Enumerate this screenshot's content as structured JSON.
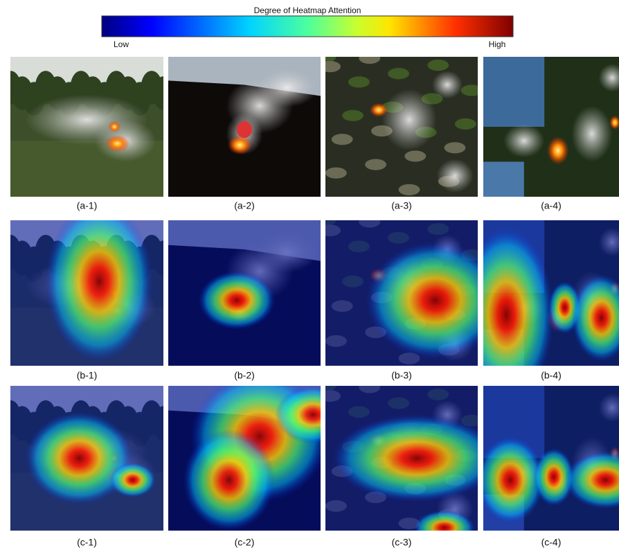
{
  "colorbar": {
    "title": "Degree of Heatmap Attention",
    "low_label": "Low",
    "high_label": "High"
  },
  "rows": [
    [
      "(a-1)",
      "(a-2)",
      "(a-3)",
      "(a-4)"
    ],
    [
      "(b-1)",
      "(b-2)",
      "(b-3)",
      "(b-4)"
    ],
    [
      "(c-1)",
      "(c-2)",
      "(c-3)",
      "(c-4)"
    ]
  ]
}
